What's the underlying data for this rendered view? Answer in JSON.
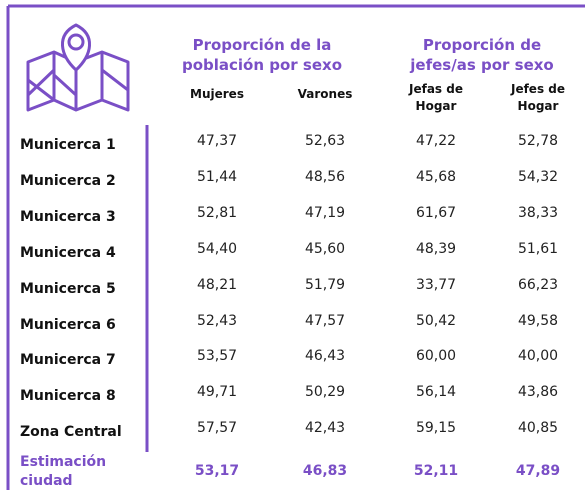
{
  "header": {
    "group_1": [
      "Proporción de la",
      "población por sexo"
    ],
    "group_2": [
      "Proporción de",
      "jefes/as por sexo"
    ],
    "columns": [
      [
        "Mujeres"
      ],
      [
        "Varones"
      ],
      [
        "Jefas de",
        "Hogar"
      ],
      [
        "Jefes de",
        "Hogar"
      ]
    ]
  },
  "table": {
    "rows": [
      [
        "Municerca 1",
        "47,37",
        "52,63",
        "47,22",
        "52,78"
      ],
      [
        "Municerca 2",
        "51,44",
        "48,56",
        "45,68",
        "54,32"
      ],
      [
        "Municerca 3",
        "52,81",
        "47,19",
        "61,67",
        "38,33"
      ],
      [
        "Municerca 4",
        "54,40",
        "45,60",
        "48,39",
        "51,61"
      ],
      [
        "Municerca 5",
        "48,21",
        "51,79",
        "33,77",
        "66,23"
      ],
      [
        "Municerca 6",
        "52,43",
        "47,57",
        "50,42",
        "49,58"
      ],
      [
        "Municerca 7",
        "53,57",
        "46,43",
        "60,00",
        "40,00"
      ],
      [
        "Municerca 8",
        "49,71",
        "50,29",
        "56,14",
        "43,86"
      ],
      [
        "Zona Central",
        "57,57",
        "42,43",
        "59,15",
        "40,85"
      ]
    ],
    "footer": {
      "label": [
        "Estimación",
        "ciudad"
      ],
      "values": [
        "53,17",
        "46,83",
        "52,11",
        "47,89"
      ]
    }
  }
}
